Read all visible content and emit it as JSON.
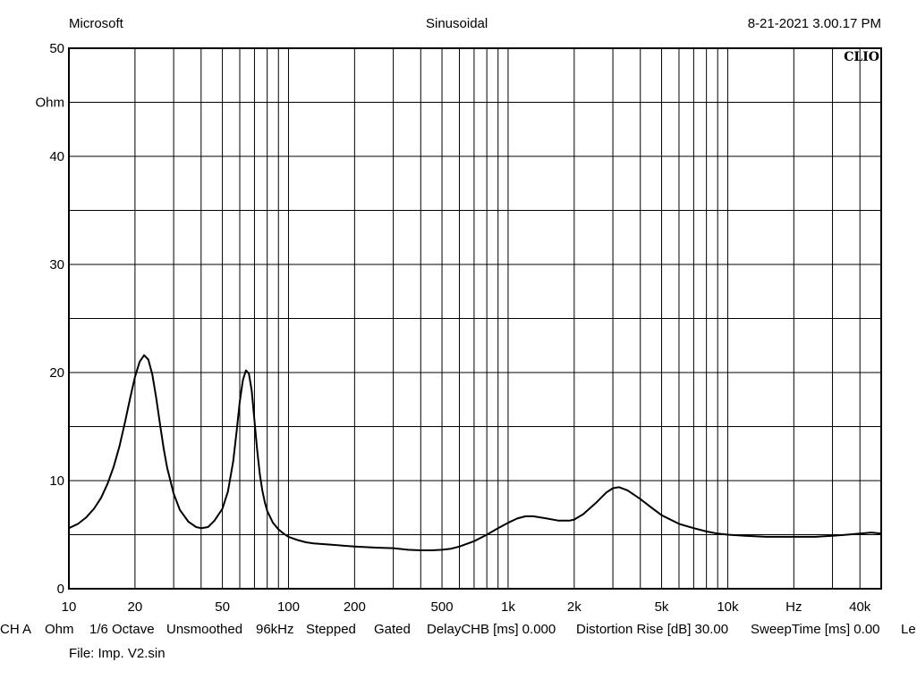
{
  "header": {
    "left": "Microsoft",
    "center": "Sinusoidal",
    "right": "8-21-2021 3.00.17 PM"
  },
  "brand": "CLIO",
  "settings": [
    "CH A",
    "Ohm",
    "1/6 Octave",
    "Unsmoothed",
    "96kHz",
    "Stepped",
    "Gated",
    "DelayCHB [ms] 0.000",
    "Distortion Rise [dB] 30.00",
    "SweepTime [ms] 0.00",
    "Le"
  ],
  "file_line": "File: Imp. V2.sin",
  "chart_data": {
    "type": "line",
    "title": "",
    "ylabel": "Ohm",
    "xlabel": "Hz",
    "xscale": "log",
    "xlim": [
      10,
      50000
    ],
    "ylim": [
      0,
      50
    ],
    "grid": true,
    "y_ticks": [
      0,
      10,
      20,
      30,
      40,
      50
    ],
    "x_ticks": [
      {
        "value": 10,
        "label": "10"
      },
      {
        "value": 20,
        "label": "20"
      },
      {
        "value": 50,
        "label": "50"
      },
      {
        "value": 100,
        "label": "100"
      },
      {
        "value": 200,
        "label": "200"
      },
      {
        "value": 500,
        "label": "500"
      },
      {
        "value": 1000,
        "label": "1k"
      },
      {
        "value": 2000,
        "label": "2k"
      },
      {
        "value": 5000,
        "label": "5k"
      },
      {
        "value": 10000,
        "label": "10k"
      },
      {
        "value": 40000,
        "label": "40k"
      }
    ],
    "series": [
      {
        "name": "",
        "x": [
          10,
          11,
          12,
          13,
          14,
          15,
          16,
          17,
          18,
          19,
          20,
          21,
          22,
          23,
          24,
          25,
          26,
          27,
          28,
          30,
          32,
          35,
          38,
          40,
          43,
          46,
          50,
          53,
          56,
          58,
          60,
          62,
          64,
          66,
          68,
          70,
          72,
          74,
          76,
          78,
          80,
          85,
          90,
          95,
          100,
          110,
          120,
          130,
          150,
          200,
          250,
          300,
          350,
          400,
          450,
          500,
          550,
          600,
          700,
          800,
          900,
          1000,
          1100,
          1200,
          1300,
          1500,
          1700,
          1900,
          2000,
          2200,
          2500,
          2800,
          3000,
          3200,
          3500,
          4000,
          4500,
          5000,
          6000,
          7000,
          8000,
          9000,
          10000,
          12000,
          15000,
          20000,
          25000,
          30000,
          35000,
          40000,
          45000,
          50000
        ],
        "y": [
          5.6,
          6.0,
          6.6,
          7.4,
          8.4,
          9.7,
          11.3,
          13.2,
          15.4,
          17.6,
          19.6,
          21.0,
          21.6,
          21.2,
          19.8,
          17.6,
          15.2,
          13.0,
          11.2,
          8.8,
          7.3,
          6.2,
          5.7,
          5.6,
          5.7,
          6.3,
          7.4,
          9.0,
          11.8,
          14.5,
          17.3,
          19.3,
          20.2,
          19.9,
          18.3,
          15.6,
          12.8,
          10.6,
          9.1,
          8.0,
          7.2,
          6.1,
          5.5,
          5.1,
          4.8,
          4.5,
          4.3,
          4.2,
          4.1,
          3.9,
          3.8,
          3.75,
          3.6,
          3.55,
          3.55,
          3.6,
          3.7,
          3.9,
          4.4,
          5.0,
          5.6,
          6.1,
          6.5,
          6.7,
          6.7,
          6.5,
          6.3,
          6.3,
          6.4,
          6.9,
          7.9,
          8.9,
          9.3,
          9.4,
          9.1,
          8.3,
          7.5,
          6.8,
          6.0,
          5.6,
          5.3,
          5.1,
          5.0,
          4.9,
          4.8,
          4.8,
          4.8,
          4.9,
          5.0,
          5.1,
          5.2,
          5.1
        ]
      }
    ]
  }
}
